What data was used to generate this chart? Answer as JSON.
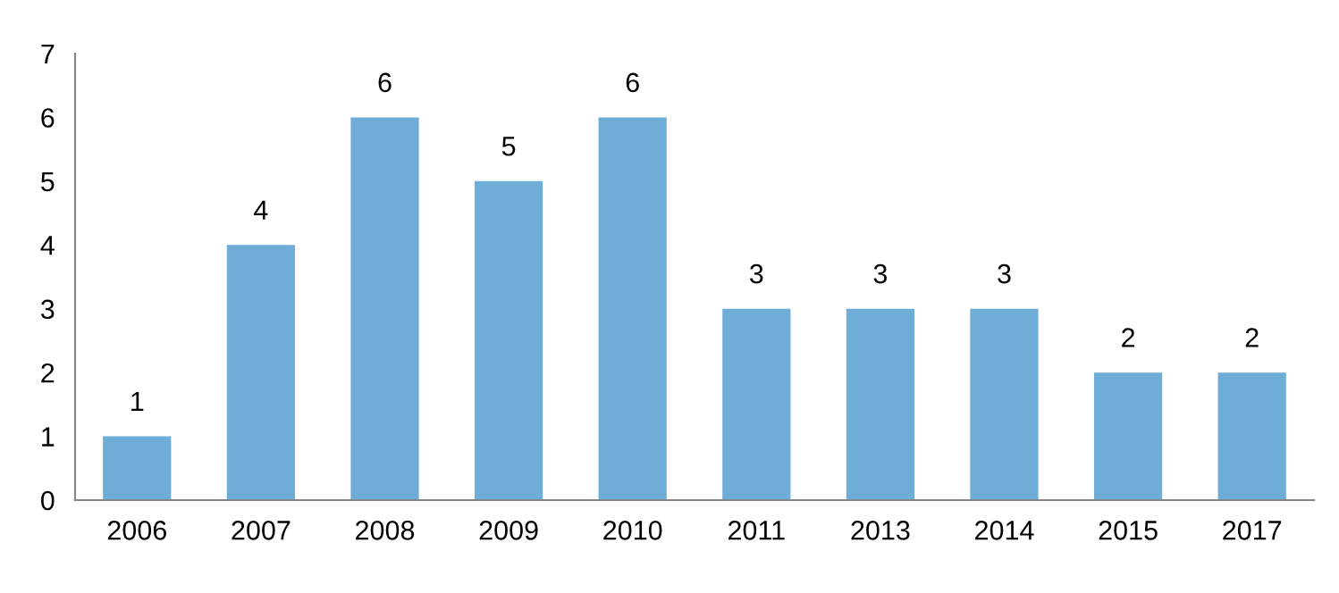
{
  "chart_data": {
    "type": "bar",
    "categories": [
      "2006",
      "2007",
      "2008",
      "2009",
      "2010",
      "2011",
      "2013",
      "2014",
      "2015",
      "2017"
    ],
    "values": [
      1,
      4,
      6,
      5,
      6,
      3,
      3,
      3,
      2,
      2
    ],
    "color": "#6fadd9",
    "ylim": [
      0,
      7
    ],
    "yticks": [
      0,
      1,
      2,
      3,
      4,
      5,
      6,
      7
    ],
    "grid": false,
    "data_labels": true
  }
}
